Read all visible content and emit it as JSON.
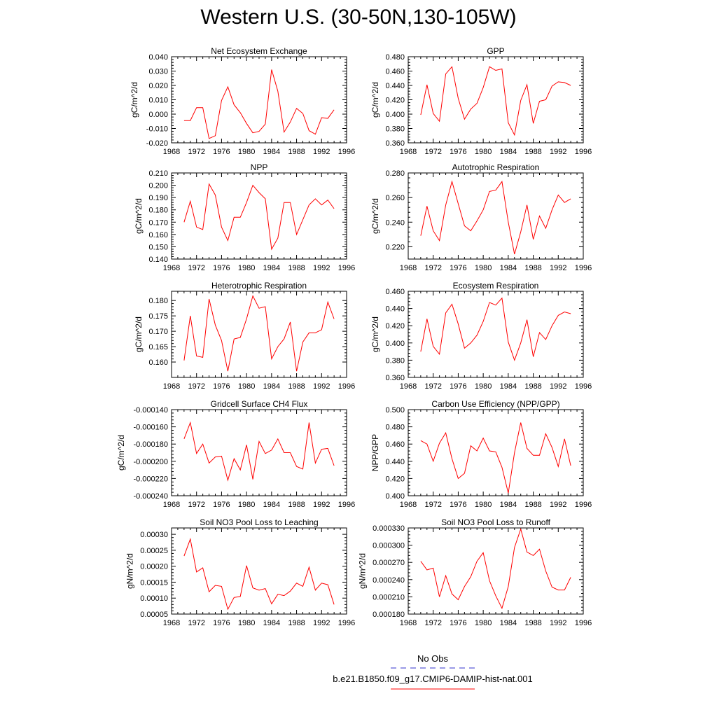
{
  "title": "Western U.S. (30-50N,130-105W)",
  "legend": {
    "entries": [
      {
        "label": "No Obs",
        "color": "#3333cc",
        "dash": "dashed"
      },
      {
        "label": "b.e21.B1850.f09_g17.CMIP6-DAMIP-hist-nat.001",
        "color": "#ff0000",
        "dash": "solid"
      }
    ]
  },
  "years": [
    1970,
    1971,
    1972,
    1973,
    1974,
    1975,
    1976,
    1977,
    1978,
    1979,
    1980,
    1981,
    1982,
    1983,
    1984,
    1985,
    1986,
    1987,
    1988,
    1989,
    1990,
    1991,
    1992,
    1993,
    1994
  ],
  "chart_data": [
    {
      "type": "line",
      "title": "Net Ecosystem Exchange",
      "ylabel": "gC/m^2/d",
      "ylim": [
        -0.02,
        0.04
      ],
      "yticks": [
        -0.02,
        -0.01,
        0.0,
        0.01,
        0.02,
        0.03,
        0.04
      ],
      "ytick_labels": [
        "-0.020",
        "-0.010",
        "0.000",
        "0.010",
        "0.020",
        "0.030",
        "0.040"
      ],
      "xlim": [
        1968,
        1996
      ],
      "xticks": [
        1968,
        1972,
        1976,
        1980,
        1984,
        1988,
        1992,
        1996
      ],
      "series": [
        {
          "color": "#ff0000",
          "values": [
            -0.0045,
            -0.0045,
            0.0045,
            0.0045,
            -0.017,
            -0.015,
            0.0095,
            0.019,
            0.0065,
            0.001,
            -0.0065,
            -0.013,
            -0.012,
            -0.007,
            0.031,
            0.016,
            -0.0125,
            -0.0055,
            0.004,
            0.0005,
            -0.0115,
            -0.014,
            -0.0025,
            -0.003,
            0.003
          ]
        }
      ]
    },
    {
      "type": "line",
      "title": "GPP",
      "ylabel": "gC/m^2/d",
      "ylim": [
        0.36,
        0.48
      ],
      "yticks": [
        0.36,
        0.38,
        0.4,
        0.42,
        0.44,
        0.46,
        0.48
      ],
      "ytick_labels": [
        "0.360",
        "0.380",
        "0.400",
        "0.420",
        "0.440",
        "0.460",
        "0.480"
      ],
      "xlim": [
        1968,
        1996
      ],
      "xticks": [
        1968,
        1972,
        1976,
        1980,
        1984,
        1988,
        1992,
        1996
      ],
      "series": [
        {
          "color": "#ff0000",
          "values": [
            0.399,
            0.441,
            0.401,
            0.39,
            0.456,
            0.466,
            0.422,
            0.393,
            0.407,
            0.415,
            0.437,
            0.466,
            0.461,
            0.463,
            0.388,
            0.371,
            0.419,
            0.441,
            0.387,
            0.418,
            0.42,
            0.439,
            0.445,
            0.444,
            0.44
          ]
        }
      ]
    },
    {
      "type": "line",
      "title": "NPP",
      "ylabel": "gC/m^2/d",
      "ylim": [
        0.14,
        0.21
      ],
      "yticks": [
        0.14,
        0.15,
        0.16,
        0.17,
        0.18,
        0.19,
        0.2,
        0.21
      ],
      "ytick_labels": [
        "0.140",
        "0.150",
        "0.160",
        "0.170",
        "0.180",
        "0.190",
        "0.200",
        "0.210"
      ],
      "xlim": [
        1968,
        1996
      ],
      "xticks": [
        1968,
        1972,
        1976,
        1980,
        1984,
        1988,
        1992,
        1996
      ],
      "series": [
        {
          "color": "#ff0000",
          "values": [
            0.17,
            0.187,
            0.166,
            0.164,
            0.201,
            0.192,
            0.166,
            0.155,
            0.174,
            0.174,
            0.186,
            0.2,
            0.194,
            0.189,
            0.148,
            0.157,
            0.186,
            0.186,
            0.16,
            0.172,
            0.184,
            0.189,
            0.184,
            0.188,
            0.181
          ]
        }
      ]
    },
    {
      "type": "line",
      "title": "Autotrophic Respiration",
      "ylabel": "gC/m^2/d",
      "ylim": [
        0.21,
        0.28
      ],
      "yticks": [
        0.22,
        0.24,
        0.26,
        0.28
      ],
      "ytick_labels": [
        "0.220",
        "0.240",
        "0.260",
        "0.280"
      ],
      "xlim": [
        1968,
        1996
      ],
      "xticks": [
        1968,
        1972,
        1976,
        1980,
        1984,
        1988,
        1992,
        1996
      ],
      "series": [
        {
          "color": "#ff0000",
          "values": [
            0.229,
            0.253,
            0.233,
            0.225,
            0.254,
            0.273,
            0.255,
            0.237,
            0.233,
            0.241,
            0.25,
            0.265,
            0.266,
            0.273,
            0.24,
            0.214,
            0.232,
            0.254,
            0.226,
            0.245,
            0.235,
            0.25,
            0.262,
            0.256,
            0.259
          ]
        }
      ]
    },
    {
      "type": "line",
      "title": "Heterotrophic Respiration",
      "ylabel": "gC/m^2/d",
      "ylim": [
        0.155,
        0.183
      ],
      "yticks": [
        0.16,
        0.165,
        0.17,
        0.175,
        0.18
      ],
      "ytick_labels": [
        "0.160",
        "0.165",
        "0.170",
        "0.175",
        "0.180"
      ],
      "xlim": [
        1968,
        1996
      ],
      "xticks": [
        1968,
        1972,
        1976,
        1980,
        1984,
        1988,
        1992,
        1996
      ],
      "series": [
        {
          "color": "#ff0000",
          "values": [
            0.1605,
            0.175,
            0.162,
            0.1615,
            0.1805,
            0.172,
            0.167,
            0.157,
            0.1675,
            0.168,
            0.174,
            0.1815,
            0.1775,
            0.178,
            0.161,
            0.165,
            0.1675,
            0.173,
            0.157,
            0.1665,
            0.1695,
            0.1695,
            0.1705,
            0.1795,
            0.174
          ]
        }
      ]
    },
    {
      "type": "line",
      "title": "Ecosystem Respiration",
      "ylabel": "gC/m^2/d",
      "ylim": [
        0.36,
        0.46
      ],
      "yticks": [
        0.36,
        0.38,
        0.4,
        0.42,
        0.44,
        0.46
      ],
      "ytick_labels": [
        "0.360",
        "0.380",
        "0.400",
        "0.420",
        "0.440",
        "0.460"
      ],
      "xlim": [
        1968,
        1996
      ],
      "xticks": [
        1968,
        1972,
        1976,
        1980,
        1984,
        1988,
        1992,
        1996
      ],
      "series": [
        {
          "color": "#ff0000",
          "values": [
            0.39,
            0.428,
            0.396,
            0.387,
            0.435,
            0.445,
            0.422,
            0.394,
            0.4,
            0.409,
            0.425,
            0.447,
            0.444,
            0.452,
            0.401,
            0.38,
            0.4,
            0.427,
            0.384,
            0.412,
            0.404,
            0.42,
            0.432,
            0.436,
            0.434
          ]
        }
      ]
    },
    {
      "type": "line",
      "title": "Gridcell Surface CH4 Flux",
      "ylabel": "gC/m^2/d",
      "ylim": [
        -0.00024,
        -0.00014
      ],
      "yticks": [
        -0.00024,
        -0.00022,
        -0.0002,
        -0.00018,
        -0.00016,
        -0.00014
      ],
      "ytick_labels": [
        "-0.000240",
        "-0.000220",
        "-0.000200",
        "-0.000180",
        "-0.000160",
        "-0.000140"
      ],
      "xlim": [
        1968,
        1996
      ],
      "xticks": [
        1968,
        1972,
        1976,
        1980,
        1984,
        1988,
        1992,
        1996
      ],
      "series": [
        {
          "color": "#ff0000",
          "values": [
            -0.000174,
            -0.000155,
            -0.000191,
            -0.00018,
            -0.000202,
            -0.000195,
            -0.000194,
            -0.000222,
            -0.000197,
            -0.00021,
            -0.000181,
            -0.000221,
            -0.000177,
            -0.000191,
            -0.000187,
            -0.000174,
            -0.00019,
            -0.00019,
            -0.000206,
            -0.000209,
            -0.000155,
            -0.000202,
            -0.000186,
            -0.000185,
            -0.000205
          ]
        }
      ]
    },
    {
      "type": "line",
      "title": "Carbon Use Efficiency (NPP/GPP)",
      "ylabel": "NPP/GPP",
      "ylim": [
        0.4,
        0.5
      ],
      "yticks": [
        0.4,
        0.42,
        0.44,
        0.46,
        0.48,
        0.5
      ],
      "ytick_labels": [
        "0.400",
        "0.420",
        "0.440",
        "0.460",
        "0.480",
        "0.500"
      ],
      "xlim": [
        1968,
        1996
      ],
      "xticks": [
        1968,
        1972,
        1976,
        1980,
        1984,
        1988,
        1992,
        1996
      ],
      "series": [
        {
          "color": "#ff0000",
          "values": [
            0.464,
            0.46,
            0.44,
            0.461,
            0.473,
            0.443,
            0.42,
            0.426,
            0.458,
            0.452,
            0.467,
            0.452,
            0.451,
            0.433,
            0.403,
            0.45,
            0.485,
            0.455,
            0.447,
            0.447,
            0.472,
            0.456,
            0.434,
            0.466,
            0.435
          ]
        }
      ]
    },
    {
      "type": "line",
      "title": "Soil NO3 Pool Loss to Leaching",
      "ylabel": "gN/m^2/d",
      "ylim": [
        5e-05,
        0.00032
      ],
      "yticks": [
        5e-05,
        0.0001,
        0.00015,
        0.0002,
        0.00025,
        0.0003
      ],
      "ytick_labels": [
        "0.00005",
        "0.00010",
        "0.00015",
        "0.00020",
        "0.00025",
        "0.00030"
      ],
      "xlim": [
        1968,
        1996
      ],
      "xticks": [
        1968,
        1972,
        1976,
        1980,
        1984,
        1988,
        1992,
        1996
      ],
      "series": [
        {
          "color": "#ff0000",
          "values": [
            0.000232,
            0.000285,
            0.000182,
            0.000195,
            0.00012,
            0.00014,
            0.000137,
            6.5e-05,
            0.000102,
            0.000105,
            0.000202,
            0.000132,
            0.000125,
            0.00013,
            8.2e-05,
            0.000112,
            0.000108,
            0.000122,
            0.000147,
            0.000137,
            0.000197,
            0.000125,
            0.000147,
            0.000142,
            8e-05
          ]
        }
      ]
    },
    {
      "type": "line",
      "title": "Soil NO3 Pool Loss to Runoff",
      "ylabel": "gN/m^2/d",
      "ylim": [
        0.00018,
        0.00033
      ],
      "yticks": [
        0.00018,
        0.00021,
        0.00024,
        0.00027,
        0.0003,
        0.00033
      ],
      "ytick_labels": [
        "0.000180",
        "0.000210",
        "0.000240",
        "0.000270",
        "0.000300",
        "0.000330"
      ],
      "xlim": [
        1968,
        1996
      ],
      "xticks": [
        1968,
        1972,
        1976,
        1980,
        1984,
        1988,
        1992,
        1996
      ],
      "series": [
        {
          "color": "#ff0000",
          "values": [
            0.000272,
            0.000257,
            0.00026,
            0.00021,
            0.000247,
            0.000215,
            0.000205,
            0.000228,
            0.000245,
            0.000272,
            0.000287,
            0.000238,
            0.000212,
            0.00019,
            0.000228,
            0.000296,
            0.000328,
            0.000288,
            0.000282,
            0.000293,
            0.000255,
            0.000227,
            0.000222,
            0.000222,
            0.000244
          ]
        }
      ]
    }
  ]
}
